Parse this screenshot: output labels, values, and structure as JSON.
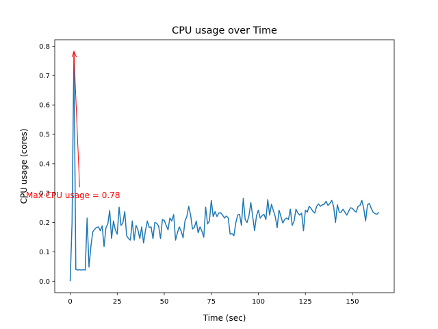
{
  "chart_data": {
    "type": "line",
    "title": "CPU usage over Time",
    "xlabel": "Time (sec)",
    "ylabel": "CPU usage (cores)",
    "xlim": [
      -8.2,
      172.2
    ],
    "ylim": [
      -0.039,
      0.822
    ],
    "xticks": [
      0,
      25,
      50,
      75,
      100,
      125,
      150
    ],
    "yticks": [
      0.0,
      0.1,
      0.2,
      0.3,
      0.4,
      0.5,
      0.6,
      0.7,
      0.8
    ],
    "grid": false,
    "colors": {
      "line": "#1f77b4",
      "annotation": "#ff0000"
    },
    "series": [
      {
        "x": [
          0,
          1,
          2,
          3,
          4,
          5,
          6,
          7,
          8,
          9,
          10,
          11,
          12,
          13,
          14,
          15,
          16,
          17,
          18,
          19,
          20,
          21,
          22,
          23,
          24,
          25,
          26,
          27,
          28,
          29,
          30,
          31,
          32,
          33,
          34,
          35,
          36,
          37,
          38,
          39,
          40,
          41,
          42,
          43,
          44,
          45,
          46,
          47,
          48,
          49,
          50,
          51,
          52,
          53,
          54,
          55,
          56,
          57,
          58,
          59,
          60,
          61,
          62,
          63,
          64,
          65,
          66,
          67,
          68,
          69,
          70,
          71,
          72,
          73,
          74,
          75,
          76,
          77,
          78,
          79,
          80,
          81,
          82,
          83,
          84,
          85,
          86,
          87,
          88,
          89,
          90,
          91,
          92,
          93,
          94,
          95,
          96,
          97,
          98,
          99,
          100,
          101,
          102,
          103,
          104,
          105,
          106,
          107,
          108,
          109,
          110,
          111,
          112,
          113,
          114,
          115,
          116,
          117,
          118,
          119,
          120,
          121,
          122,
          123,
          124,
          125,
          126,
          127,
          128,
          129,
          130,
          131,
          132,
          133,
          134,
          135,
          136,
          137,
          138,
          139,
          140,
          141,
          142,
          143,
          144,
          145,
          146,
          147,
          148,
          149,
          150,
          151,
          152,
          153,
          154,
          155,
          156,
          157,
          158,
          159,
          160,
          161,
          162,
          163,
          164
        ],
        "values": [
          0.0,
          0.2,
          0.782,
          0.04,
          0.038,
          0.039,
          0.038,
          0.039,
          0.038,
          0.215,
          0.048,
          0.118,
          0.168,
          0.177,
          0.183,
          0.185,
          0.172,
          0.188,
          0.118,
          0.182,
          0.195,
          0.241,
          0.145,
          0.205,
          0.175,
          0.16,
          0.252,
          0.19,
          0.198,
          0.237,
          0.155,
          0.145,
          0.14,
          0.205,
          0.14,
          0.19,
          0.175,
          0.145,
          0.185,
          0.13,
          0.172,
          0.205,
          0.183,
          0.185,
          0.145,
          0.2,
          0.197,
          0.188,
          0.145,
          0.21,
          0.207,
          0.19,
          0.175,
          0.215,
          0.205,
          0.227,
          0.14,
          0.165,
          0.185,
          0.17,
          0.148,
          0.205,
          0.22,
          0.255,
          0.225,
          0.178,
          0.183,
          0.205,
          0.165,
          0.185,
          0.17,
          0.15,
          0.252,
          0.195,
          0.205,
          0.275,
          0.22,
          0.237,
          0.22,
          0.232,
          0.233,
          0.225,
          0.215,
          0.222,
          0.215,
          0.16,
          0.162,
          0.155,
          0.198,
          0.225,
          0.228,
          0.19,
          0.282,
          0.21,
          0.2,
          0.222,
          0.268,
          0.22,
          0.172,
          0.222,
          0.242,
          0.215,
          0.223,
          0.228,
          0.21,
          0.278,
          0.225,
          0.262,
          0.24,
          0.22,
          0.182,
          0.242,
          0.22,
          0.198,
          0.21,
          0.215,
          0.21,
          0.245,
          0.19,
          0.205,
          0.245,
          0.232,
          0.225,
          0.232,
          0.172,
          0.242,
          0.235,
          0.255,
          0.248,
          0.238,
          0.232,
          0.255,
          0.263,
          0.255,
          0.26,
          0.262,
          0.272,
          0.258,
          0.265,
          0.275,
          0.255,
          0.2,
          0.26,
          0.235,
          0.235,
          0.245,
          0.235,
          0.225,
          0.238,
          0.25,
          0.248,
          0.24,
          0.235,
          0.255,
          0.258,
          0.275,
          0.248,
          0.205,
          0.26,
          0.265,
          0.248,
          0.235,
          0.23,
          0.228,
          0.235
        ]
      }
    ],
    "annotation": {
      "text": "Max CPU usage = 0.78",
      "point": [
        2,
        0.782
      ],
      "text_anchor": [
        5,
        0.32
      ]
    }
  }
}
